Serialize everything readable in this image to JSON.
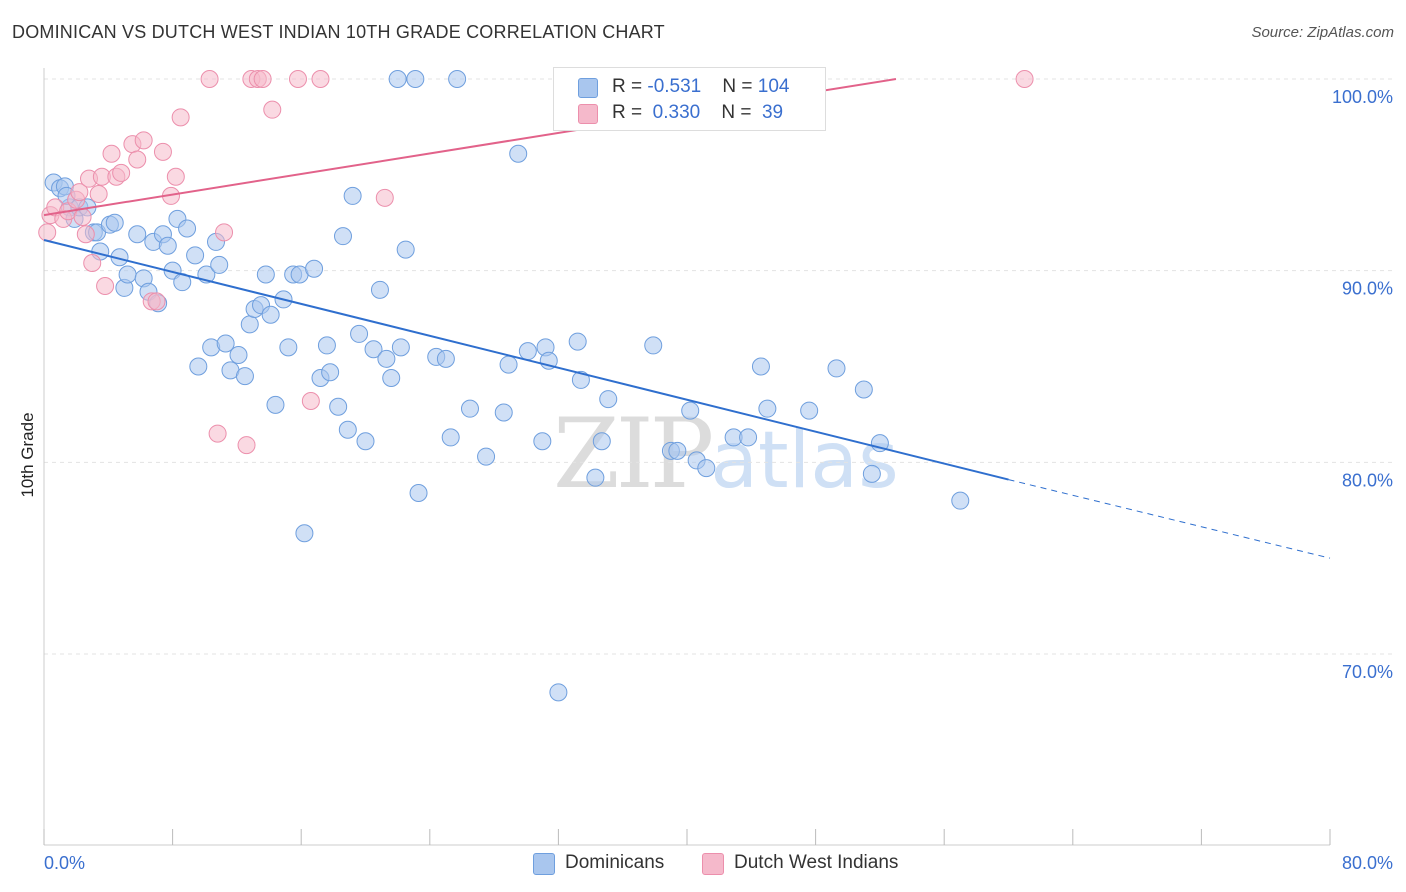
{
  "header": {
    "title": "DOMINICAN VS DUTCH WEST INDIAN 10TH GRADE CORRELATION CHART",
    "source": "Source: ZipAtlas.com"
  },
  "legend": {
    "rows": [
      {
        "r_label": "R = ",
        "r_value": "-0.531",
        "n_label": "N = ",
        "n_value": "104",
        "color": "#a9c6ee"
      },
      {
        "r_label": "R = ",
        "r_value": " 0.330",
        "n_label": "N = ",
        "n_value": " 39",
        "color": "#f5b9cb"
      }
    ]
  },
  "watermark": {
    "zip": "ZIP",
    "atlas": "atlas"
  },
  "chart_data": {
    "type": "scatter",
    "title": "DOMINICAN VS DUTCH WEST INDIAN 10TH GRADE CORRELATION CHART",
    "xlabel": "",
    "ylabel": "10th Grade",
    "xlim": [
      0,
      80
    ],
    "ylim": [
      60,
      101
    ],
    "x_tick_labels": [
      "0.0%",
      "80.0%"
    ],
    "y_ticks": [
      70,
      80,
      90,
      100
    ],
    "y_tick_labels": [
      "70.0%",
      "80.0%",
      "90.0%",
      "100.0%"
    ],
    "grid": true,
    "series": [
      {
        "name": "Dominicans",
        "color": "#a9c6ee",
        "stroke": "#6f9fde",
        "trend": {
          "x0": 0,
          "y0": 91.6,
          "x1": 60,
          "y1": 79.1,
          "dash_to_x": 80,
          "dash_to_y": 75.0,
          "color": "#2f6fce"
        },
        "points": [
          [
            0.6,
            94.6
          ],
          [
            1.0,
            94.3
          ],
          [
            1.3,
            94.4
          ],
          [
            1.6,
            93.3
          ],
          [
            1.9,
            92.7
          ],
          [
            2.2,
            93.3
          ],
          [
            2.7,
            93.3
          ],
          [
            3.1,
            92.0
          ],
          [
            3.3,
            92.0
          ],
          [
            3.5,
            91.0
          ],
          [
            4.1,
            92.4
          ],
          [
            4.4,
            92.5
          ],
          [
            4.7,
            90.7
          ],
          [
            5.0,
            89.1
          ],
          [
            5.2,
            89.8
          ],
          [
            5.8,
            91.9
          ],
          [
            6.2,
            89.6
          ],
          [
            6.5,
            88.9
          ],
          [
            6.8,
            91.5
          ],
          [
            7.1,
            88.3
          ],
          [
            7.4,
            91.9
          ],
          [
            7.7,
            91.3
          ],
          [
            8.0,
            90.0
          ],
          [
            8.3,
            92.7
          ],
          [
            8.6,
            89.4
          ],
          [
            8.9,
            92.2
          ],
          [
            9.4,
            90.8
          ],
          [
            9.6,
            85.0
          ],
          [
            10.1,
            89.8
          ],
          [
            10.4,
            86.0
          ],
          [
            10.7,
            91.5
          ],
          [
            10.9,
            90.3
          ],
          [
            11.3,
            86.2
          ],
          [
            11.6,
            84.8
          ],
          [
            12.1,
            85.6
          ],
          [
            12.5,
            84.5
          ],
          [
            12.8,
            87.2
          ],
          [
            13.1,
            88.0
          ],
          [
            13.5,
            88.2
          ],
          [
            13.8,
            89.8
          ],
          [
            14.1,
            87.7
          ],
          [
            14.4,
            83.0
          ],
          [
            14.9,
            88.5
          ],
          [
            15.2,
            86.0
          ],
          [
            15.5,
            89.8
          ],
          [
            15.9,
            89.8
          ],
          [
            16.2,
            76.3
          ],
          [
            16.8,
            90.1
          ],
          [
            17.2,
            84.4
          ],
          [
            17.6,
            86.1
          ],
          [
            17.8,
            84.7
          ],
          [
            18.3,
            82.9
          ],
          [
            18.6,
            91.8
          ],
          [
            18.9,
            81.7
          ],
          [
            19.2,
            93.9
          ],
          [
            19.6,
            86.7
          ],
          [
            20.0,
            81.1
          ],
          [
            20.5,
            85.9
          ],
          [
            20.9,
            89.0
          ],
          [
            21.3,
            85.4
          ],
          [
            21.6,
            84.4
          ],
          [
            22.0,
            100.0
          ],
          [
            22.2,
            86.0
          ],
          [
            22.5,
            91.1
          ],
          [
            23.1,
            100.0
          ],
          [
            23.3,
            78.4
          ],
          [
            24.4,
            85.5
          ],
          [
            25.0,
            85.4
          ],
          [
            25.3,
            81.3
          ],
          [
            25.7,
            100.0
          ],
          [
            26.5,
            82.8
          ],
          [
            27.5,
            80.3
          ],
          [
            28.6,
            82.6
          ],
          [
            28.9,
            85.1
          ],
          [
            29.5,
            96.1
          ],
          [
            30.1,
            85.8
          ],
          [
            31.0,
            81.1
          ],
          [
            31.2,
            86.0
          ],
          [
            31.4,
            85.3
          ],
          [
            32.5,
            100.0
          ],
          [
            33.2,
            86.3
          ],
          [
            33.4,
            84.3
          ],
          [
            34.3,
            79.2
          ],
          [
            34.7,
            81.1
          ],
          [
            35.1,
            83.3
          ],
          [
            37.9,
            86.1
          ],
          [
            39.0,
            80.6
          ],
          [
            39.4,
            80.6
          ],
          [
            40.2,
            82.7
          ],
          [
            40.6,
            80.1
          ],
          [
            41.2,
            79.7
          ],
          [
            42.9,
            81.3
          ],
          [
            43.8,
            81.3
          ],
          [
            44.6,
            85.0
          ],
          [
            45.0,
            82.8
          ],
          [
            47.6,
            82.7
          ],
          [
            49.3,
            84.9
          ],
          [
            51.0,
            83.8
          ],
          [
            51.5,
            79.4
          ],
          [
            52.0,
            81.0
          ],
          [
            57.0,
            78.0
          ],
          [
            32.0,
            68.0
          ],
          [
            45.5,
            100.0
          ],
          [
            1.4,
            93.9
          ]
        ]
      },
      {
        "name": "Dutch West Indians",
        "color": "#f5b9cb",
        "stroke": "#ec8fac",
        "trend": {
          "x0": 0,
          "y0": 92.9,
          "x1": 53,
          "y1": 100.0,
          "color": "#e2628a"
        },
        "points": [
          [
            0.2,
            92.0
          ],
          [
            0.4,
            92.9
          ],
          [
            0.7,
            93.3
          ],
          [
            1.2,
            92.7
          ],
          [
            1.5,
            93.1
          ],
          [
            2.0,
            93.7
          ],
          [
            2.2,
            94.1
          ],
          [
            2.4,
            92.8
          ],
          [
            2.6,
            91.9
          ],
          [
            2.8,
            94.8
          ],
          [
            3.0,
            90.4
          ],
          [
            3.4,
            94.0
          ],
          [
            3.6,
            94.9
          ],
          [
            3.8,
            89.2
          ],
          [
            4.2,
            96.1
          ],
          [
            4.5,
            94.9
          ],
          [
            4.8,
            95.1
          ],
          [
            5.5,
            96.6
          ],
          [
            5.8,
            95.8
          ],
          [
            6.2,
            96.8
          ],
          [
            6.7,
            88.4
          ],
          [
            7.0,
            88.4
          ],
          [
            7.4,
            96.2
          ],
          [
            7.9,
            93.9
          ],
          [
            8.2,
            94.9
          ],
          [
            8.5,
            98.0
          ],
          [
            10.3,
            100.0
          ],
          [
            10.8,
            81.5
          ],
          [
            11.2,
            92.0
          ],
          [
            12.6,
            80.9
          ],
          [
            12.9,
            100.0
          ],
          [
            13.3,
            100.0
          ],
          [
            13.6,
            100.0
          ],
          [
            14.2,
            98.4
          ],
          [
            15.8,
            100.0
          ],
          [
            16.6,
            83.2
          ],
          [
            17.2,
            100.0
          ],
          [
            21.2,
            93.8
          ],
          [
            61.0,
            100.0
          ]
        ]
      }
    ]
  },
  "bottom_legend": {
    "items": [
      {
        "label": "Dominicans",
        "color": "#a9c6ee",
        "stroke": "#6f9fde"
      },
      {
        "label": "Dutch West Indians",
        "color": "#f5b9cb",
        "stroke": "#ec8fac"
      }
    ]
  }
}
